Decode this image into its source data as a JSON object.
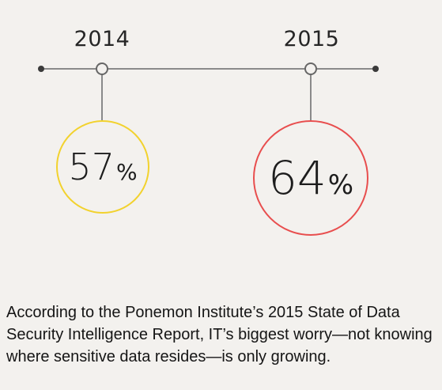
{
  "timeline": {
    "points": [
      {
        "year": "2014",
        "value": "57",
        "unit": "%",
        "color": "#f2d22e"
      },
      {
        "year": "2015",
        "value": "64",
        "unit": "%",
        "color": "#e84e4e"
      }
    ]
  },
  "caption": "According to the Ponemon Institute’s 2015 State of Data Security Intelligence Report, IT’s biggest worry—not knowing where sensitive data resides—is only growing.",
  "colors": {
    "background": "#f3f1ee",
    "line": "#8a8a8a",
    "year_2014_ring": "#f2d22e",
    "year_2015_ring": "#e84e4e"
  }
}
